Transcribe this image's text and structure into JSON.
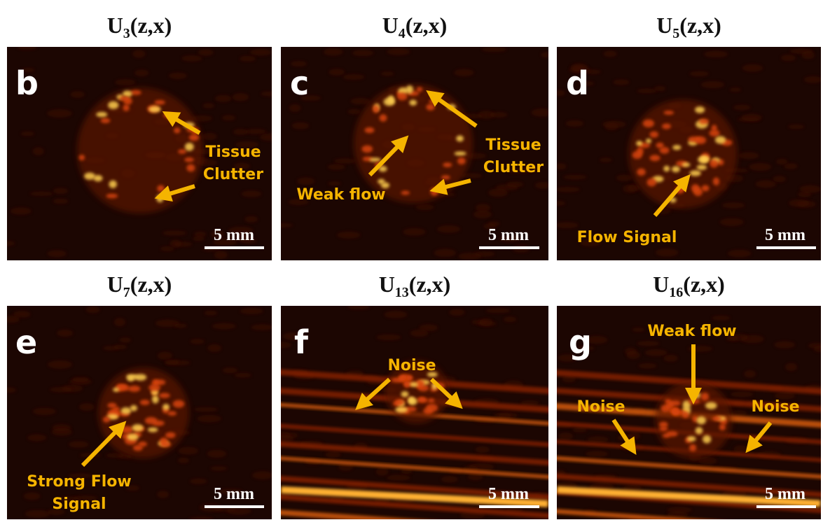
{
  "panels": [
    {
      "title": {
        "base": "U",
        "sub": "3",
        "args": "(z,x)"
      },
      "letter": "b",
      "scale_bar": "5 mm",
      "annotations": [
        {
          "lines": [
            "Tissue",
            "Clutter"
          ]
        }
      ]
    },
    {
      "title": {
        "base": "U",
        "sub": "4",
        "args": "(z,x)"
      },
      "letter": "c",
      "scale_bar": "5 mm",
      "annotations": [
        {
          "lines": [
            "Tissue",
            "Clutter"
          ]
        },
        {
          "lines": [
            "Weak flow"
          ]
        }
      ]
    },
    {
      "title": {
        "base": "U",
        "sub": "5",
        "args": "(z,x)"
      },
      "letter": "d",
      "scale_bar": "5 mm",
      "annotations": [
        {
          "lines": [
            "Flow Signal"
          ]
        }
      ]
    },
    {
      "title": {
        "base": "U",
        "sub": "7",
        "args": "(z,x)"
      },
      "letter": "e",
      "scale_bar": "5 mm",
      "annotations": [
        {
          "lines": [
            "Strong Flow",
            "Signal"
          ]
        }
      ]
    },
    {
      "title": {
        "base": "U",
        "sub": "13",
        "args": "(z,x)"
      },
      "letter": "f",
      "scale_bar": "5 mm",
      "annotations": [
        {
          "lines": [
            "Noise"
          ]
        }
      ]
    },
    {
      "title": {
        "base": "U",
        "sub": "16",
        "args": "(z,x)"
      },
      "letter": "g",
      "scale_bar": "5 mm",
      "annotations": [
        {
          "lines": [
            "Weak flow"
          ]
        },
        {
          "lines": [
            "Noise"
          ]
        },
        {
          "lines": [
            "Noise"
          ]
        }
      ]
    }
  ]
}
